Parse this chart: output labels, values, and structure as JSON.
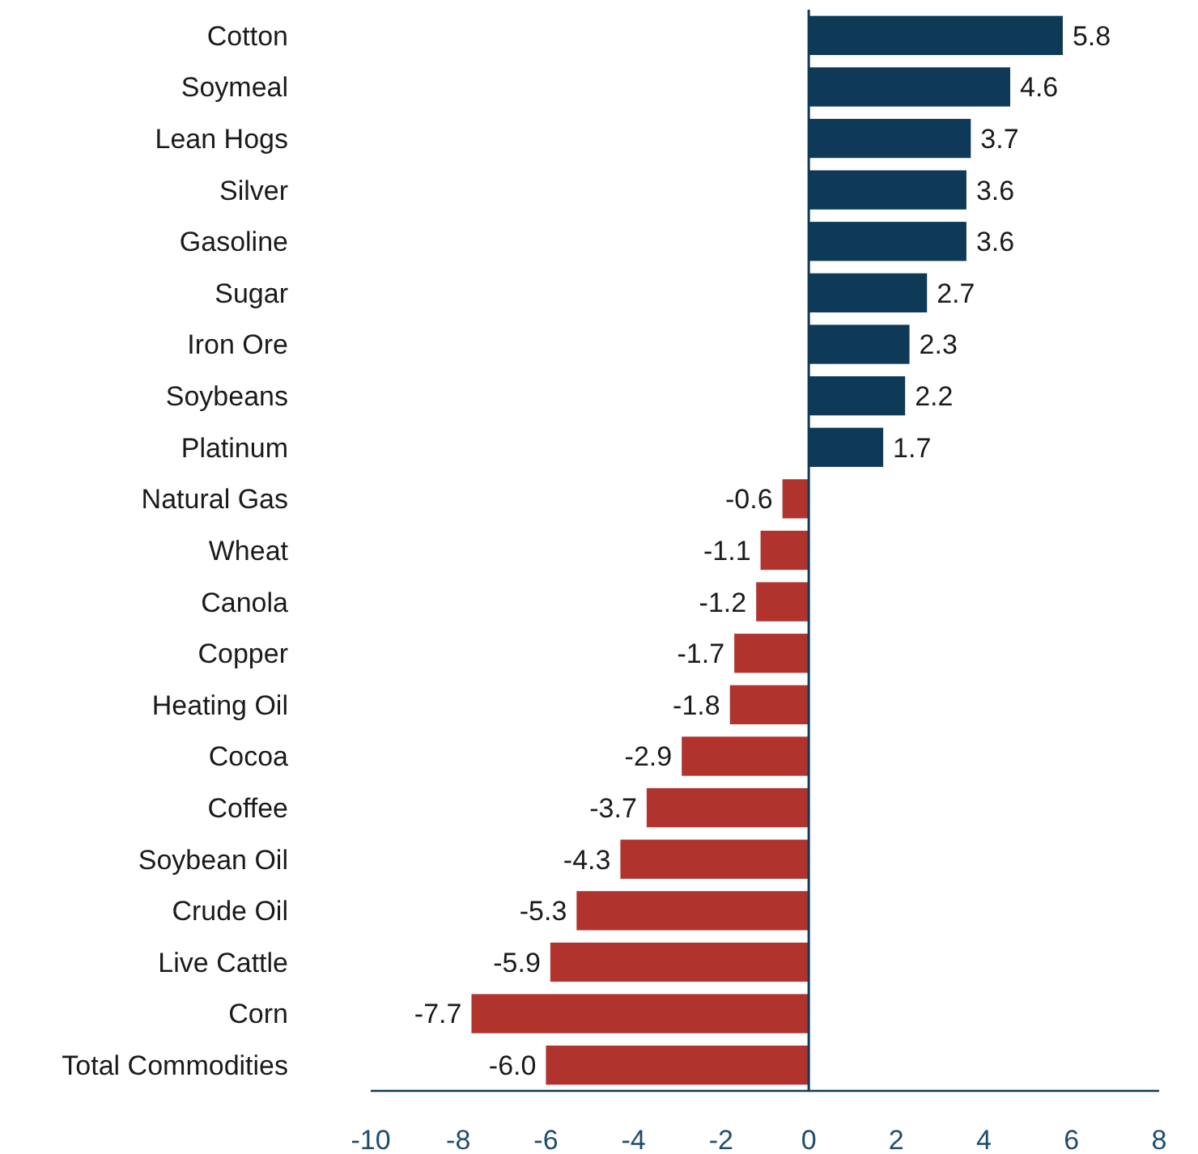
{
  "chart_data": {
    "type": "bar",
    "orientation": "horizontal",
    "categories": [
      "Cotton",
      "Soymeal",
      "Lean Hogs",
      "Silver",
      "Gasoline",
      "Sugar",
      "Iron Ore",
      "Soybeans",
      "Platinum",
      "Natural Gas",
      "Wheat",
      "Canola",
      "Copper",
      "Heating Oil",
      "Cocoa",
      "Coffee",
      "Soybean Oil",
      "Crude Oil",
      "Live Cattle",
      "Corn",
      "Total Commodities"
    ],
    "values": [
      5.8,
      4.6,
      3.7,
      3.6,
      3.6,
      2.7,
      2.3,
      2.2,
      1.7,
      -0.6,
      -1.1,
      -1.2,
      -1.7,
      -1.8,
      -2.9,
      -3.7,
      -4.3,
      -5.3,
      -5.9,
      -7.7,
      -6.0
    ],
    "value_labels": [
      "5.8",
      "4.6",
      "3.7",
      "3.6",
      "3.6",
      "2.7",
      "2.3",
      "2.2",
      "1.7",
      "-0.6",
      "-1.1",
      "-1.2",
      "-1.7",
      "-1.8",
      "-2.9",
      "-3.7",
      "-4.3",
      "-5.3",
      "-5.9",
      "-7.7",
      "-6.0"
    ],
    "colors": [
      "#0e3a57",
      "#0e3a57",
      "#0e3a57",
      "#0e3a57",
      "#0e3a57",
      "#0e3a57",
      "#0e3a57",
      "#0e3a57",
      "#0e3a57",
      "#b0332e",
      "#b0332e",
      "#b0332e",
      "#b0332e",
      "#b0332e",
      "#b0332e",
      "#b0332e",
      "#b0332e",
      "#b0332e",
      "#b0332e",
      "#b0332e",
      "#b0332e"
    ],
    "xlim": [
      -10,
      8
    ],
    "xticks": [
      -10,
      -8,
      -6,
      -4,
      -2,
      0,
      2,
      4,
      6,
      8
    ],
    "grid": false
  }
}
